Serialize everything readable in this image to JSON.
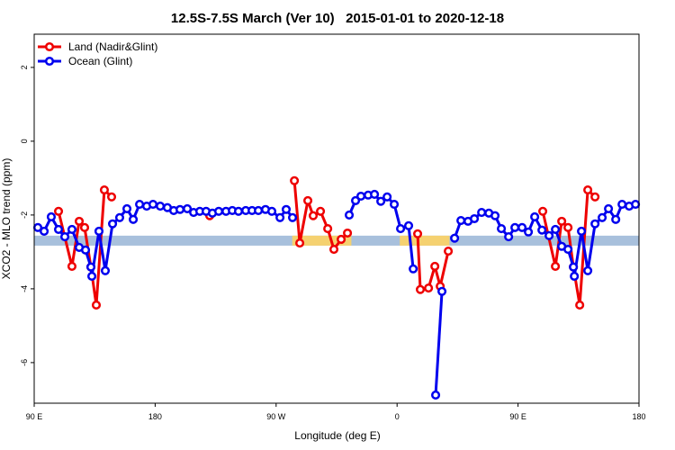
{
  "chart_data": {
    "type": "line",
    "title": "12.5S-7.5S March (Ver 10)   2015-01-01 to 2020-12-18",
    "xlabel": "Longitude (deg E)",
    "ylabel": "XCO2 - MLO trend (ppm)",
    "xlim": [
      90,
      540
    ],
    "xticks": [
      {
        "value": 90,
        "label": "90 E"
      },
      {
        "value": 180,
        "label": "180"
      },
      {
        "value": 270,
        "label": "90 W"
      },
      {
        "value": 360,
        "label": "0"
      },
      {
        "value": 450,
        "label": "90 E"
      },
      {
        "value": 540,
        "label": "180"
      }
    ],
    "ylim": [
      -7.1,
      2.9
    ],
    "yticks": [
      2,
      0,
      -2,
      -4,
      -6
    ],
    "legend": "upper left",
    "band": {
      "range": [
        -2.56,
        -2.83
      ],
      "color": "#a8c0dc",
      "segments": [
        {
          "x": [
            282,
            326
          ],
          "color": "#f5d170"
        },
        {
          "x": [
            362,
            399
          ],
          "color": "#f5d170"
        }
      ]
    },
    "series": [
      {
        "name": "Land (Nadir&Glint)",
        "color": "#ee0000",
        "x": [
          108.1,
          118.1,
          123.5,
          127.5,
          132.2,
          136.2,
          142.2,
          147.6,
          null,
          220.6,
          null,
          283.6,
          287.6,
          293.6,
          297.6,
          303,
          308.4,
          313,
          318.4,
          323.1,
          null,
          375.3,
          377.3,
          383.4,
          388.1,
          392.1,
          398.1,
          null,
          468.4,
          477.8,
          482.5,
          487.2,
          491.2,
          495.9,
          501.9,
          507.3
        ],
        "values": [
          -1.9,
          -3.39,
          -2.17,
          -2.34,
          -3.41,
          -4.44,
          -1.32,
          -1.51,
          null,
          -2.02,
          null,
          -1.07,
          -2.76,
          -1.61,
          -2.02,
          -1.9,
          -2.37,
          -2.93,
          -2.66,
          -2.49,
          null,
          -2.51,
          -4.02,
          -3.98,
          -3.39,
          -3.93,
          -2.98,
          null,
          -1.9,
          -3.39,
          -2.17,
          -2.34,
          -3.41,
          -4.44,
          -1.32,
          -1.51
        ]
      },
      {
        "name": "Ocean (Glint)",
        "color": "#0000ee",
        "x": [
          92.7,
          97.4,
          102.7,
          108.1,
          112.8,
          118.1,
          123.5,
          128.2,
          132.2,
          132.9,
          138.2,
          142.9,
          148.3,
          153.6,
          159,
          163.7,
          168.4,
          173.7,
          178.4,
          183.8,
          189.1,
          193.8,
          198.5,
          203.9,
          208.6,
          213.2,
          217.9,
          222.6,
          227.3,
          232.7,
          237.4,
          242,
          247.4,
          252.1,
          256.8,
          262.1,
          266.8,
          272.9,
          277.5,
          282.2,
          null,
          324.4,
          329.1,
          333.1,
          338.5,
          343.2,
          347.9,
          352.6,
          357.9,
          362.6,
          368.6,
          372,
          null,
          388.7,
          393.4,
          null,
          402.8,
          407.5,
          412.8,
          417.5,
          422.9,
          428.3,
          432.9,
          437.6,
          443,
          447.7,
          453,
          457.7,
          462.4,
          467.8,
          473.1,
          477.8,
          482.5,
          487.2,
          491.2,
          491.9,
          497.2,
          501.9,
          507.3,
          512.6,
          517.3,
          522.7,
          527.4,
          532.7,
          537.4
        ],
        "values": [
          -2.34,
          -2.44,
          -2.05,
          -2.39,
          -2.59,
          -2.39,
          -2.88,
          -2.95,
          -3.41,
          -3.66,
          -2.44,
          -3.51,
          -2.24,
          -2.07,
          -1.83,
          -2.12,
          -1.71,
          -1.76,
          -1.71,
          -1.76,
          -1.8,
          -1.88,
          -1.85,
          -1.83,
          -1.93,
          -1.9,
          -1.9,
          -1.95,
          -1.9,
          -1.9,
          -1.88,
          -1.9,
          -1.88,
          -1.88,
          -1.88,
          -1.85,
          -1.9,
          -2.07,
          -1.85,
          -2.07,
          null,
          -2.0,
          -1.61,
          -1.49,
          -1.46,
          -1.44,
          -1.63,
          -1.51,
          -1.71,
          -2.37,
          -2.29,
          -3.46,
          null,
          -6.88,
          -4.07,
          null,
          -2.63,
          -2.15,
          -2.17,
          -2.1,
          -1.93,
          -1.95,
          -2.02,
          -2.37,
          -2.59,
          -2.34,
          -2.34,
          -2.46,
          -2.05,
          -2.41,
          -2.56,
          -2.39,
          -2.85,
          -2.93,
          -3.41,
          -3.66,
          -2.44,
          -3.51,
          -2.24,
          -2.07,
          -1.83,
          -2.12,
          -1.71,
          -1.76,
          -1.71
        ]
      }
    ]
  }
}
